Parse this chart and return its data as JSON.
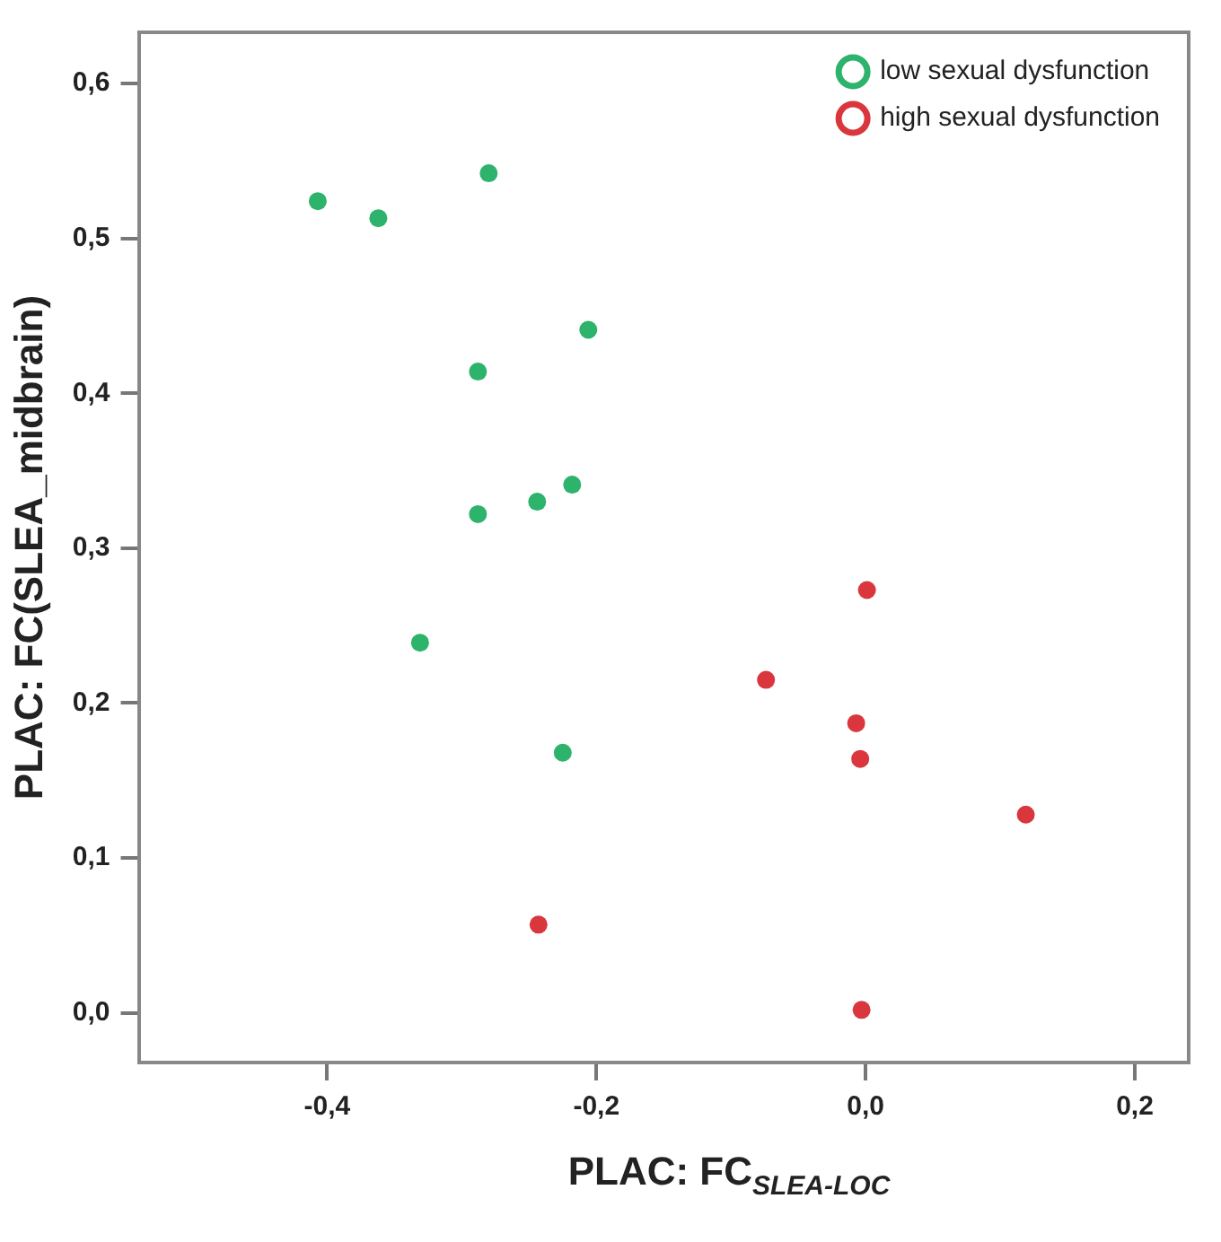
{
  "chart_data": {
    "type": "scatter",
    "xlabel": "PLAC: FC$_{SLEA-LOC}$",
    "ylabel": "PLAC: FC(SLEA_midbrain)",
    "xlim": [
      -0.54,
      0.24
    ],
    "ylim": [
      -0.032,
      0.633
    ],
    "xticks": [
      {
        "value": -0.4,
        "label": "-0,4"
      },
      {
        "value": -0.2,
        "label": "-0,2"
      },
      {
        "value": 0,
        "label": "0,0"
      },
      {
        "value": 0.2,
        "label": "0,2"
      }
    ],
    "yticks": [
      {
        "value": 0,
        "label": "0,0"
      },
      {
        "value": 0.1,
        "label": "0,1"
      },
      {
        "value": 0.2,
        "label": "0,2"
      },
      {
        "value": 0.3,
        "label": "0,3"
      },
      {
        "value": 0.4,
        "label": "0,4"
      },
      {
        "value": 0.5,
        "label": "0,5"
      },
      {
        "value": 0.6,
        "label": "0,6"
      }
    ],
    "grid": false,
    "legend": "top right",
    "marker": "circle",
    "series": [
      {
        "name": "low sexual dysfunction",
        "color": "#2db36b",
        "x": [
          -0.407,
          -0.362,
          -0.28,
          -0.206,
          -0.288,
          -0.218,
          -0.244,
          -0.288,
          -0.331,
          -0.225
        ],
        "values": [
          0.524,
          0.513,
          0.542,
          0.441,
          0.414,
          0.341,
          0.33,
          0.322,
          0.239,
          0.168
        ]
      },
      {
        "name": "high sexual dysfunction",
        "color": "#d9363e",
        "x": [
          0.001,
          -0.074,
          -0.007,
          -0.004,
          0.119,
          -0.243,
          -0.003
        ],
        "values": [
          0.273,
          0.215,
          0.187,
          0.164,
          0.128,
          0.057,
          0.002
        ]
      }
    ]
  }
}
